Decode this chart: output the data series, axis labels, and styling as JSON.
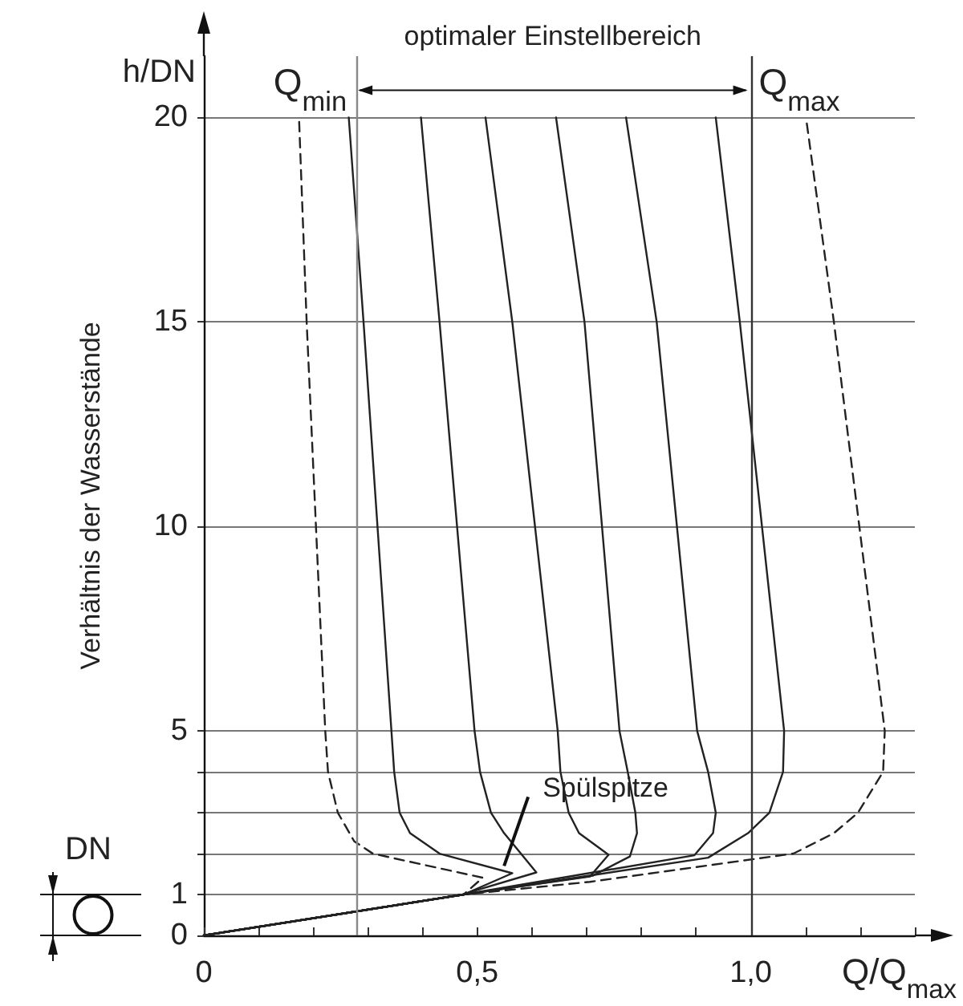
{
  "chart_data": {
    "type": "line",
    "xlabel": "Q/Q$_{max}$",
    "ylabel": "Verhältnis der Wasserstände",
    "xlim": [
      0,
      1.3
    ],
    "ylim": [
      0,
      21.5
    ],
    "xticks": [
      0,
      {
        "value": 0.1,
        "label": null
      },
      {
        "value": 0.2,
        "label": null
      },
      {
        "value": 0.3,
        "label": null
      },
      {
        "value": 0.4,
        "label": null
      },
      {
        "value": 0.5,
        "label": "0,5"
      },
      {
        "value": 0.6,
        "label": null
      },
      {
        "value": 0.7,
        "label": null
      },
      {
        "value": 0.8,
        "label": null
      },
      {
        "value": 0.9,
        "label": null
      },
      {
        "value": 1.0,
        "label": "1,0"
      },
      {
        "value": 1.1,
        "label": null
      },
      {
        "value": 1.2,
        "label": null
      },
      {
        "value": 1.3,
        "label": null
      }
    ],
    "yticks": [
      0,
      1,
      {
        "value": 2,
        "label": null
      },
      {
        "value": 3,
        "label": null
      },
      {
        "value": 4,
        "label": null
      },
      5,
      10,
      15,
      20
    ],
    "grid": "y",
    "marker": "none",
    "annotations": [
      "h/DN",
      "optimaler Einstellbereich",
      {
        "text": "Spülspitze",
        "x": 0.549,
        "y": 1.7
      },
      "DN"
    ],
    "ref_lines": [
      {
        "axis": "x",
        "value": 0.276,
        "label": "Q$_{min}$",
        "color": "#888888"
      },
      {
        "axis": "x",
        "value": 1.0,
        "label": "Q$_{max}$",
        "color": "#333333"
      }
    ],
    "series": [
      {
        "color": "#222222",
        "line_style": "dashed",
        "x": [
          0,
          0.475,
          0.51,
          0.309,
          0.275,
          0.245,
          0.227,
          0.222,
          0.188,
          0.174
        ],
        "values": [
          0,
          1,
          1.41,
          2,
          2.3,
          3,
          4,
          5,
          15,
          20
        ]
      },
      {
        "color": "#222222",
        "line_style": "solid",
        "x": [
          0,
          0.475,
          0.564,
          0.431,
          0.377,
          0.358,
          0.348,
          0.343,
          0.292,
          0.265
        ],
        "values": [
          0,
          1,
          1.52,
          2,
          2.5,
          3,
          4,
          5,
          15,
          20
        ]
      },
      {
        "color": "#222222",
        "line_style": "solid",
        "x": [
          0,
          0.475,
          0.485,
          0.608,
          0.549,
          0.525,
          0.505,
          0.495,
          0.431,
          0.397
        ],
        "values": [
          0,
          1,
          1.05,
          1.54,
          2.5,
          3,
          4,
          5,
          15,
          20
        ]
      },
      {
        "color": "#222222",
        "line_style": "solid",
        "x": [
          0,
          0.475,
          0.706,
          0.74,
          0.686,
          0.667,
          0.652,
          0.647,
          0.564,
          0.515
        ],
        "values": [
          0,
          1,
          1.44,
          1.97,
          2.5,
          3,
          4,
          5,
          15,
          20
        ]
      },
      {
        "color": "#222222",
        "line_style": "solid",
        "x": [
          0,
          0.475,
          0.711,
          0.779,
          0.792,
          0.789,
          0.775,
          0.76,
          0.696,
          0.644
        ],
        "values": [
          0,
          1,
          1.46,
          1.93,
          2.5,
          3,
          4,
          5,
          15,
          20
        ]
      },
      {
        "color": "#222222",
        "line_style": "solid",
        "x": [
          0,
          0.475,
          0.897,
          0.931,
          0.936,
          0.922,
          0.902,
          0.828,
          0.772
        ],
        "values": [
          0,
          1,
          1.96,
          2.5,
          3,
          4,
          5,
          15,
          20
        ]
      },
      {
        "color": "#222222",
        "line_style": "solid",
        "x": [
          0,
          0.475,
          0.922,
          0.995,
          1.034,
          1.059,
          1.061,
          0.98,
          0.936
        ],
        "values": [
          0,
          1,
          1.9,
          2.5,
          3,
          4,
          5,
          15,
          20
        ]
      },
      {
        "color": "#222222",
        "line_style": "dashed",
        "x": [
          0,
          0.475,
          0.706,
          1.078,
          1.152,
          1.196,
          1.242,
          1.245,
          1.152,
          1.101
        ],
        "values": [
          0,
          1,
          1.31,
          2,
          2.5,
          3,
          4,
          5,
          15,
          20
        ]
      }
    ]
  }
}
